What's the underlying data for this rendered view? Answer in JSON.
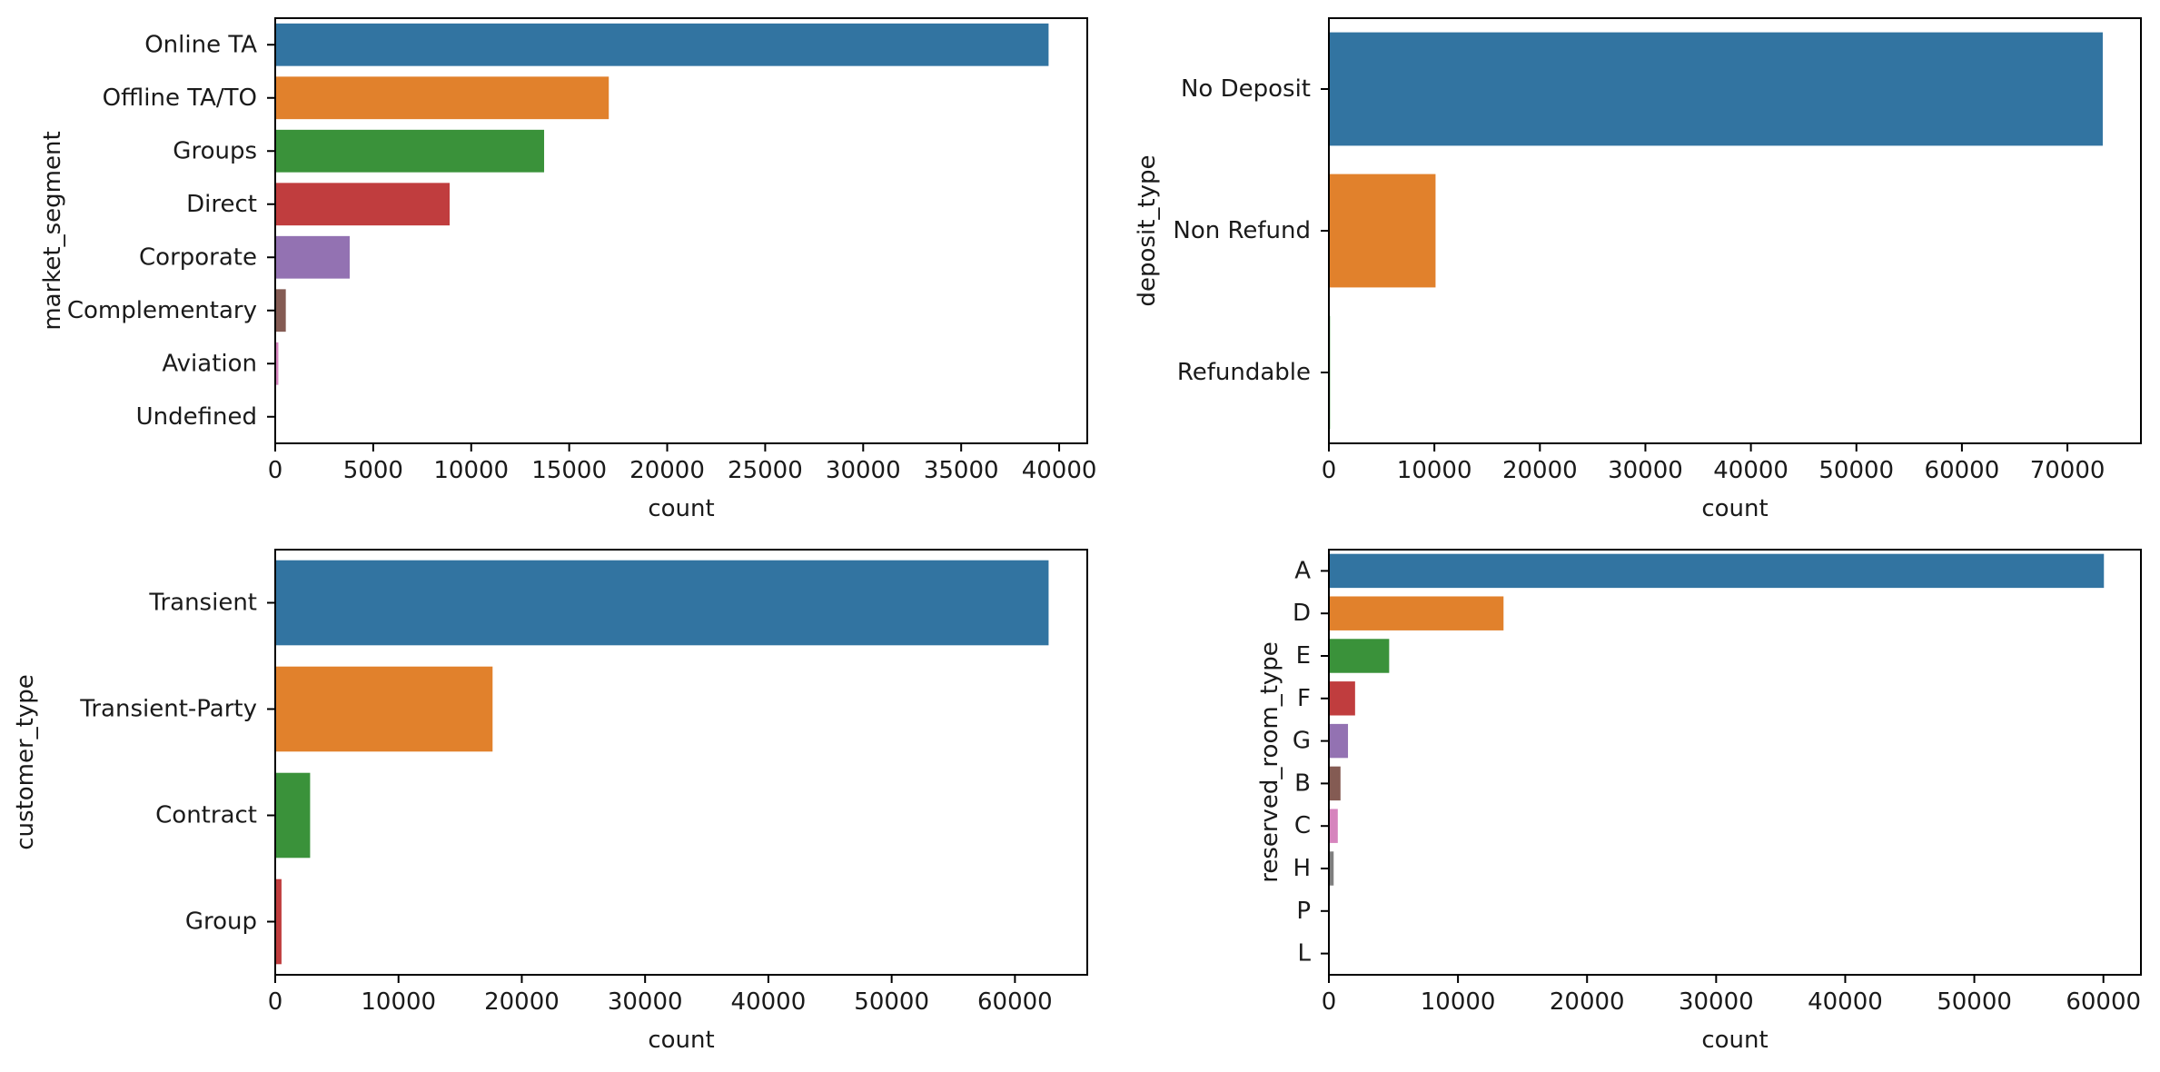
{
  "chart_data": [
    {
      "type": "bar",
      "orientation": "horizontal",
      "ylabel": "market_segment",
      "xlabel": "count",
      "categories": [
        "Online TA",
        "Offline TA/TO",
        "Groups",
        "Direct",
        "Corporate",
        "Complementary",
        "Aviation",
        "Undefined"
      ],
      "values": [
        39460,
        17020,
        13720,
        8900,
        3800,
        540,
        160,
        2
      ],
      "xlim": [
        0,
        41434
      ],
      "xticks": [
        0,
        5000,
        10000,
        15000,
        20000,
        25000,
        30000,
        35000,
        40000
      ],
      "xtick_labels": [
        "0",
        "5000",
        "10000",
        "15000",
        "20000",
        "25000",
        "30000",
        "35000",
        "40000"
      ]
    },
    {
      "type": "bar",
      "orientation": "horizontal",
      "ylabel": "deposit_type",
      "xlabel": "count",
      "categories": [
        "No Deposit",
        "Non Refund",
        "Refundable"
      ],
      "values": [
        73350,
        10110,
        110
      ],
      "xlim": [
        0,
        76968
      ],
      "xticks": [
        0,
        10000,
        20000,
        30000,
        40000,
        50000,
        60000,
        70000
      ],
      "xtick_labels": [
        "0",
        "10000",
        "20000",
        "30000",
        "40000",
        "50000",
        "60000",
        "70000"
      ]
    },
    {
      "type": "bar",
      "orientation": "horizontal",
      "ylabel": "customer_type",
      "xlabel": "count",
      "categories": [
        "Transient",
        "Transient-Party",
        "Contract",
        "Group"
      ],
      "values": [
        62730,
        17630,
        2830,
        510
      ],
      "xlim": [
        0,
        65866
      ],
      "xticks": [
        0,
        10000,
        20000,
        30000,
        40000,
        50000,
        60000
      ],
      "xtick_labels": [
        "0",
        "10000",
        "20000",
        "30000",
        "40000",
        "50000",
        "60000"
      ]
    },
    {
      "type": "bar",
      "orientation": "horizontal",
      "ylabel": "reserved_room_type",
      "xlabel": "count",
      "categories": [
        "A",
        "D",
        "E",
        "F",
        "G",
        "B",
        "C",
        "H",
        "P",
        "L"
      ],
      "values": [
        60040,
        13530,
        4670,
        2030,
        1480,
        900,
        690,
        370,
        12,
        5
      ],
      "xlim": [
        0,
        62907
      ],
      "xticks": [
        0,
        10000,
        20000,
        30000,
        40000,
        50000,
        60000
      ],
      "xtick_labels": [
        "0",
        "10000",
        "20000",
        "30000",
        "40000",
        "50000",
        "60000"
      ]
    }
  ],
  "palette": [
    "#3274a1",
    "#e1812c",
    "#3a923a",
    "#c03d3e",
    "#9372b2",
    "#845b53",
    "#d684bd",
    "#7f7f7f",
    "#a9aa35",
    "#2fa8b9"
  ]
}
